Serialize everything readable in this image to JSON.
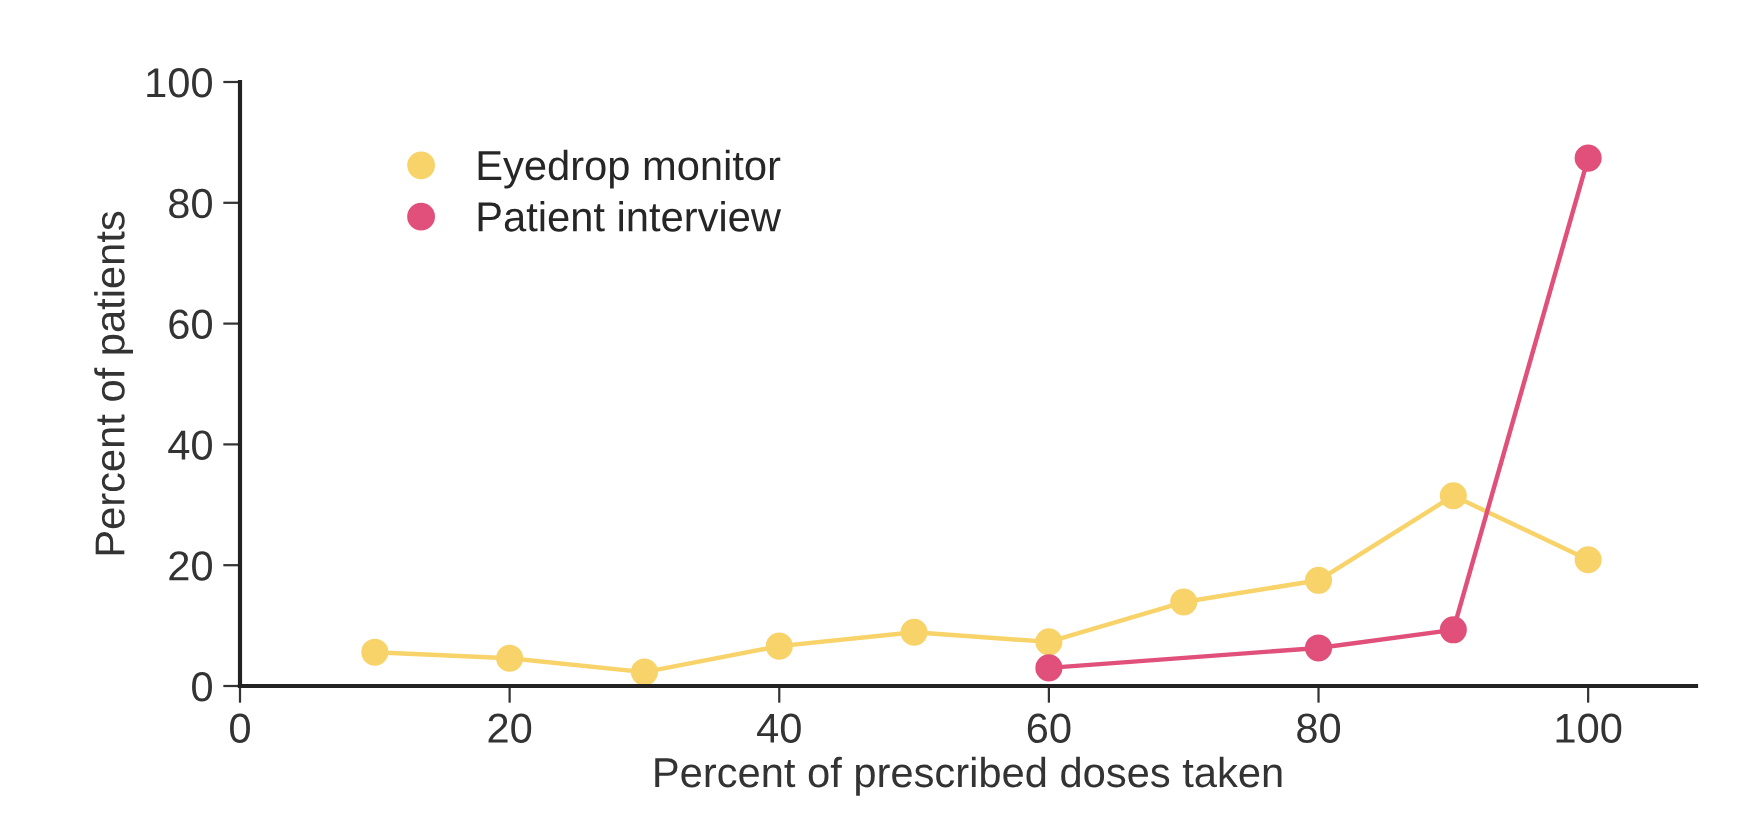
{
  "chart_data": {
    "type": "line",
    "xlabel": "Percent of prescribed doses taken",
    "ylabel": "Percent of patients",
    "xlim": [
      0,
      108
    ],
    "xticks": [
      0,
      20,
      40,
      60,
      80,
      100
    ],
    "ylim": [
      0,
      100
    ],
    "yticks": [
      0,
      20,
      40,
      60,
      80,
      100
    ],
    "grid": false,
    "legend": "top left",
    "marker": "circle",
    "line_style": "solid",
    "series": [
      {
        "name": "Eyedrop monitor",
        "color": "#f8d36a",
        "x": [
          10,
          20,
          30,
          40,
          50,
          60,
          70,
          80,
          90,
          100
        ],
        "values": [
          5.6,
          4.6,
          2.3,
          6.6,
          8.9,
          7.3,
          13.9,
          17.5,
          31.5,
          20.9
        ]
      },
      {
        "name": "Patient interview",
        "color": "#e0507a",
        "x": [
          60,
          80,
          90,
          100
        ],
        "values": [
          3,
          6.3,
          9.3,
          87.4
        ]
      }
    ]
  }
}
